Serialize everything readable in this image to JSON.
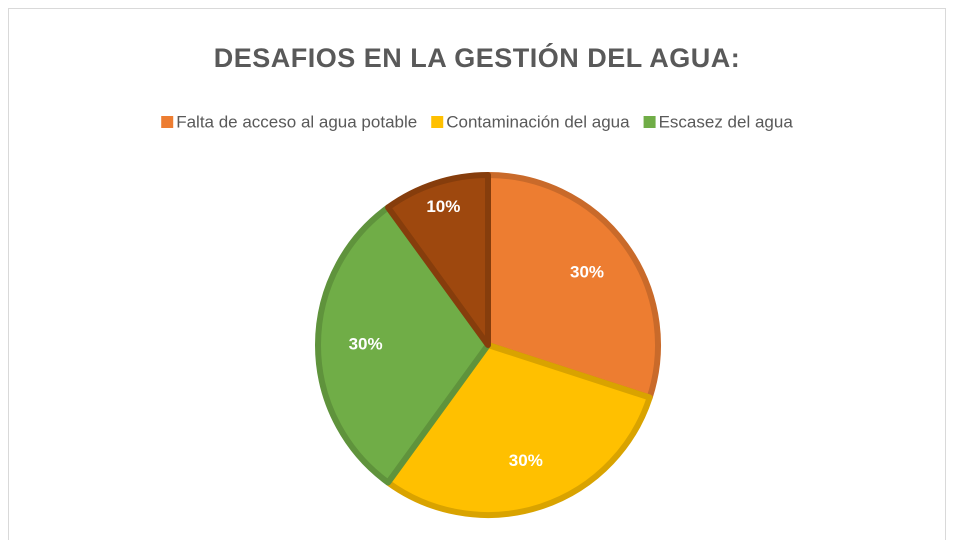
{
  "chart_data": {
    "type": "pie",
    "title": "DESAFIOS EN LA GESTIÓN DEL AGUA:",
    "categories": [
      "Falta de acceso al agua potable",
      "Contaminación del agua",
      "Escasez del agua",
      null
    ],
    "values": [
      30,
      30,
      30,
      10
    ],
    "value_labels": [
      "30%",
      "30%",
      "30%",
      "10%"
    ],
    "colors": [
      "#ED7D31",
      "#FFC000",
      "#70AD47",
      "#9E480E"
    ],
    "legend": "top"
  }
}
